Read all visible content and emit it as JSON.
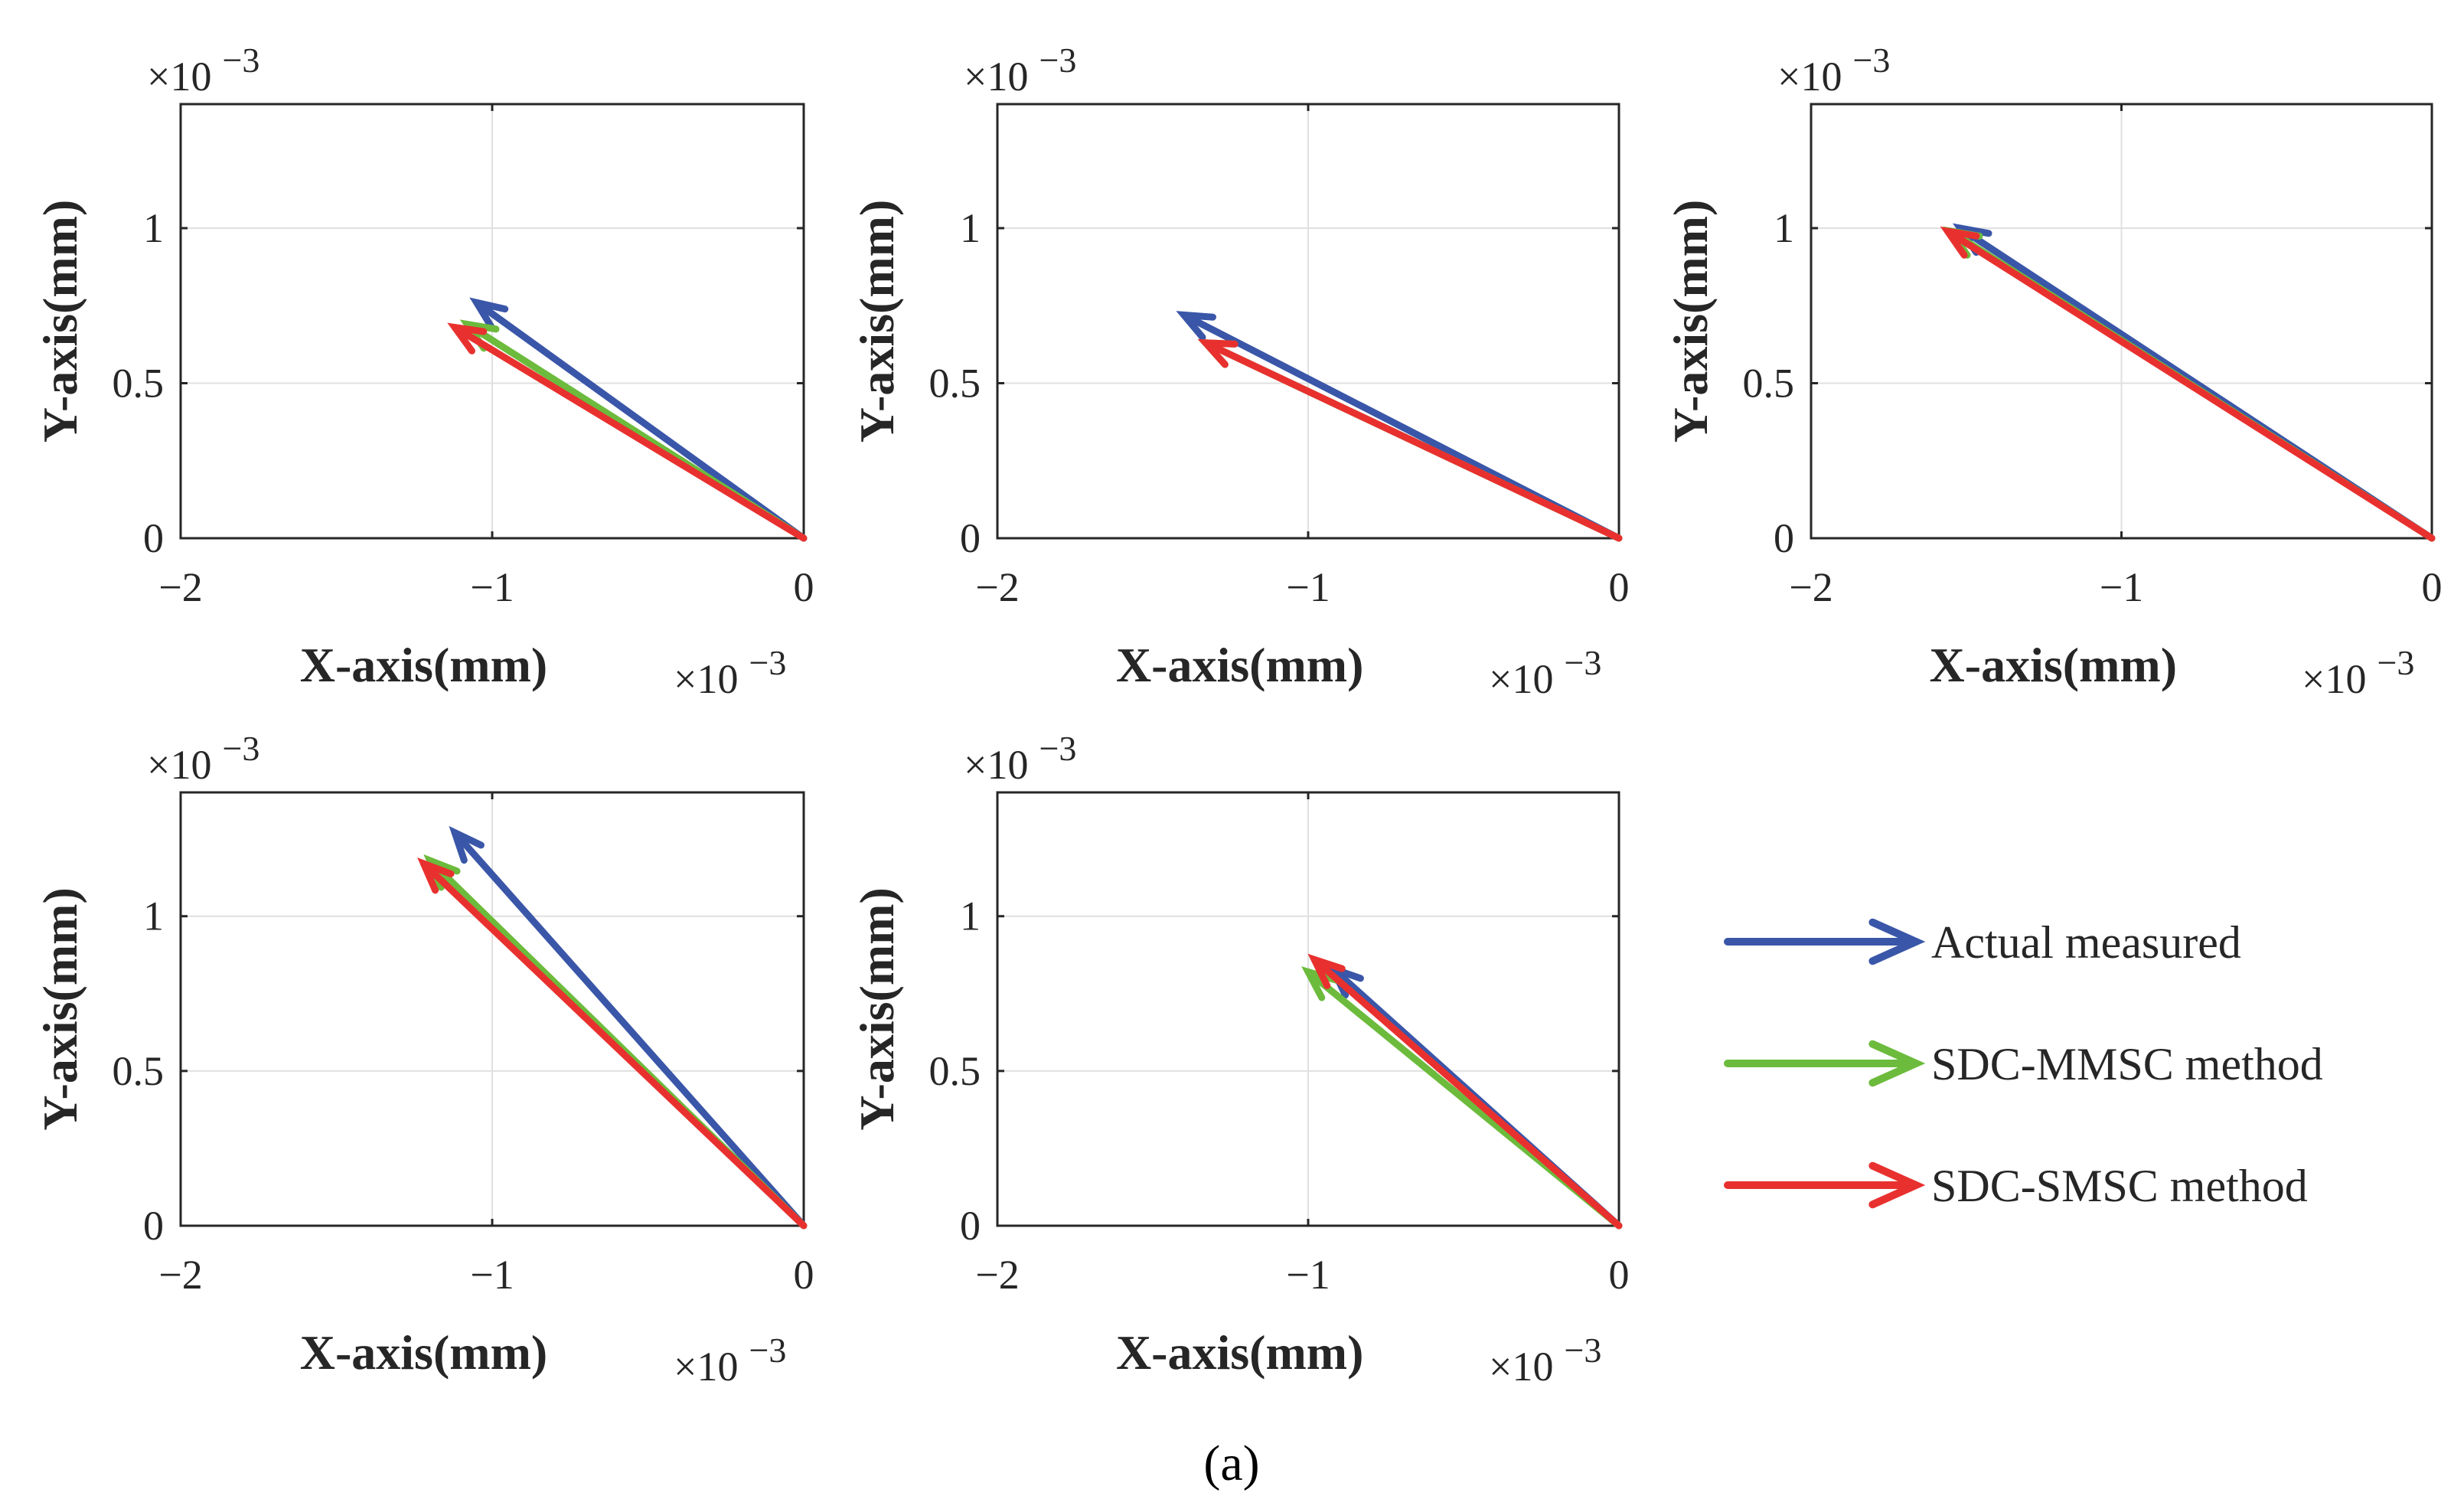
{
  "figure": {
    "caption": "(a)",
    "colors": {
      "actual": "#3a56a8",
      "mmsc": "#6cbb3c",
      "smsc": "#e8312f",
      "grid": "#e0e0e0",
      "axis": "#262626"
    }
  },
  "legend": {
    "items": [
      {
        "label": "Actual measured",
        "series": "actual"
      },
      {
        "label": "SDC-MMSC method",
        "series": "mmsc"
      },
      {
        "label": "SDC-SMSC method",
        "series": "smsc"
      }
    ]
  },
  "chart_data": [
    {
      "type": "quiver",
      "title": "",
      "xlabel": "X-axis(mm)",
      "ylabel": "Y-axis(mm)",
      "x_multiplier_base": "×10",
      "x_multiplier_exp": "−3",
      "y_multiplier_base": "×10",
      "y_multiplier_exp": "−3",
      "xlim": [
        -2,
        0
      ],
      "ylim": [
        0,
        1.4
      ],
      "xticks": [
        -2,
        -1,
        0
      ],
      "xtick_labels": [
        "−2",
        "−1",
        "0"
      ],
      "yticks": [
        0,
        0.5,
        1
      ],
      "ytick_labels": [
        "0",
        "0.5",
        "1"
      ],
      "grid": true,
      "series": [
        {
          "name": "Actual measured",
          "key": "actual",
          "origin": [
            0,
            0
          ],
          "tip": [
            -1.05,
            0.76
          ]
        },
        {
          "name": "SDC-MMSC method",
          "key": "mmsc",
          "origin": [
            0,
            0
          ],
          "tip": [
            -1.08,
            0.69
          ]
        },
        {
          "name": "SDC-SMSC method",
          "key": "smsc",
          "origin": [
            0,
            0
          ],
          "tip": [
            -1.12,
            0.68
          ]
        }
      ]
    },
    {
      "type": "quiver",
      "title": "",
      "xlabel": "X-axis(mm)",
      "ylabel": "Y-axis(mm)",
      "x_multiplier_base": "×10",
      "x_multiplier_exp": "−3",
      "y_multiplier_base": "×10",
      "y_multiplier_exp": "−3",
      "xlim": [
        -2,
        0
      ],
      "ylim": [
        0,
        1.4
      ],
      "xticks": [
        -2,
        -1,
        0
      ],
      "xtick_labels": [
        "−2",
        "−1",
        "0"
      ],
      "yticks": [
        0,
        0.5,
        1
      ],
      "ytick_labels": [
        "0",
        "0.5",
        "1"
      ],
      "grid": true,
      "series": [
        {
          "name": "Actual measured",
          "key": "actual",
          "origin": [
            0,
            0
          ],
          "tip": [
            -1.4,
            0.72
          ]
        },
        {
          "name": "SDC-MMSC method",
          "key": "mmsc",
          "origin": [
            0,
            0
          ],
          "tip": [
            -1.33,
            0.63
          ]
        },
        {
          "name": "SDC-SMSC method",
          "key": "smsc",
          "origin": [
            0,
            0
          ],
          "tip": [
            -1.33,
            0.63
          ]
        }
      ]
    },
    {
      "type": "quiver",
      "title": "",
      "xlabel": "X-axis(mm)",
      "ylabel": "Y-axis(mm)",
      "x_multiplier_base": "×10",
      "x_multiplier_exp": "−3",
      "y_multiplier_base": "×10",
      "y_multiplier_exp": "−3",
      "xlim": [
        -2,
        0
      ],
      "ylim": [
        0,
        1.4
      ],
      "xticks": [
        -2,
        -1,
        0
      ],
      "xtick_labels": [
        "−2",
        "−1",
        "0"
      ],
      "yticks": [
        0,
        0.5,
        1
      ],
      "ytick_labels": [
        "0",
        "0.5",
        "1"
      ],
      "grid": true,
      "series": [
        {
          "name": "Actual measured",
          "key": "actual",
          "origin": [
            0,
            0
          ],
          "tip": [
            -1.52,
            1.0
          ]
        },
        {
          "name": "SDC-MMSC method",
          "key": "mmsc",
          "origin": [
            0,
            0
          ],
          "tip": [
            -1.55,
            0.99
          ]
        },
        {
          "name": "SDC-SMSC method",
          "key": "smsc",
          "origin": [
            0,
            0
          ],
          "tip": [
            -1.56,
            0.99
          ]
        }
      ]
    },
    {
      "type": "quiver",
      "title": "",
      "xlabel": "X-axis(mm)",
      "ylabel": "Y-axis(mm)",
      "x_multiplier_base": "×10",
      "x_multiplier_exp": "−3",
      "y_multiplier_base": "×10",
      "y_multiplier_exp": "−3",
      "xlim": [
        -2,
        0
      ],
      "ylim": [
        0,
        1.4
      ],
      "xticks": [
        -2,
        -1,
        0
      ],
      "xtick_labels": [
        "−2",
        "−1",
        "0"
      ],
      "yticks": [
        0,
        0.5,
        1
      ],
      "ytick_labels": [
        "0",
        "0.5",
        "1"
      ],
      "grid": true,
      "series": [
        {
          "name": "Actual measured",
          "key": "actual",
          "origin": [
            0,
            0
          ],
          "tip": [
            -1.12,
            1.27
          ]
        },
        {
          "name": "SDC-MMSC method",
          "key": "mmsc",
          "origin": [
            0,
            0
          ],
          "tip": [
            -1.2,
            1.18
          ]
        },
        {
          "name": "SDC-SMSC method",
          "key": "smsc",
          "origin": [
            0,
            0
          ],
          "tip": [
            -1.22,
            1.17
          ]
        }
      ]
    },
    {
      "type": "quiver",
      "title": "",
      "xlabel": "X-axis(mm)",
      "ylabel": "Y-axis(mm)",
      "x_multiplier_base": "×10",
      "x_multiplier_exp": "−3",
      "y_multiplier_base": "×10",
      "y_multiplier_exp": "−3",
      "xlim": [
        -2,
        0
      ],
      "ylim": [
        0,
        1.4
      ],
      "xticks": [
        -2,
        -1,
        0
      ],
      "xtick_labels": [
        "−2",
        "−1",
        "0"
      ],
      "yticks": [
        0,
        0.5,
        1
      ],
      "ytick_labels": [
        "0",
        "0.5",
        "1"
      ],
      "grid": true,
      "series": [
        {
          "name": "Actual measured",
          "key": "actual",
          "origin": [
            0,
            0
          ],
          "tip": [
            -0.92,
            0.83
          ]
        },
        {
          "name": "SDC-MMSC method",
          "key": "mmsc",
          "origin": [
            0,
            0
          ],
          "tip": [
            -1.0,
            0.82
          ]
        },
        {
          "name": "SDC-SMSC method",
          "key": "smsc",
          "origin": [
            0,
            0
          ],
          "tip": [
            -0.98,
            0.86
          ]
        }
      ]
    }
  ]
}
